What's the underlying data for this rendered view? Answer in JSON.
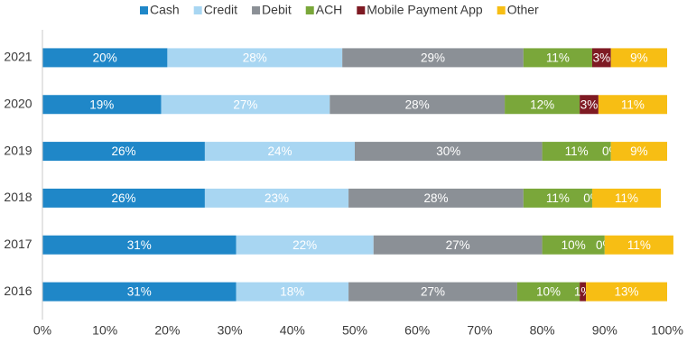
{
  "chart_data": {
    "type": "stacked-bar-horizontal",
    "categories": [
      "2021",
      "2020",
      "2019",
      "2018",
      "2017",
      "2016"
    ],
    "series": [
      {
        "name": "Cash",
        "color": "#1f87c8",
        "values": [
          20,
          19,
          26,
          26,
          31,
          31
        ],
        "value_labels": [
          "20%",
          "19%",
          "26%",
          "26%",
          "31%",
          "31%"
        ]
      },
      {
        "name": "Credit",
        "color": "#a8d6f2",
        "values": [
          28,
          27,
          24,
          23,
          22,
          18
        ],
        "value_labels": [
          "28%",
          "27%",
          "24%",
          "23%",
          "22%",
          "18%"
        ]
      },
      {
        "name": "Debit",
        "color": "#8b9096",
        "values": [
          29,
          28,
          30,
          28,
          27,
          27
        ],
        "value_labels": [
          "29%",
          "28%",
          "30%",
          "28%",
          "27%",
          "27%"
        ]
      },
      {
        "name": "ACH",
        "color": "#7aa73a",
        "values": [
          11,
          12,
          11,
          11,
          10,
          10
        ],
        "value_labels": [
          "11%",
          "12%",
          "11%",
          "11%",
          "10%",
          "10%"
        ]
      },
      {
        "name": "Mobile Payment App",
        "color": "#7e1a23",
        "values": [
          3,
          3,
          0,
          0,
          0,
          1
        ],
        "value_labels": [
          "3%",
          "3%",
          "0%",
          "0%",
          "0%",
          "1%"
        ]
      },
      {
        "name": "Other",
        "color": "#f7be14",
        "values": [
          9,
          11,
          9,
          11,
          11,
          13
        ],
        "value_labels": [
          "9%",
          "11%",
          "9%",
          "11%",
          "11%",
          "13%"
        ]
      }
    ],
    "xlim": [
      0,
      100
    ],
    "xticks": [
      {
        "value": 0,
        "label": "0%"
      },
      {
        "value": 10,
        "label": "10%"
      },
      {
        "value": 20,
        "label": "20%"
      },
      {
        "value": 30,
        "label": "30%"
      },
      {
        "value": 40,
        "label": "40%"
      },
      {
        "value": 50,
        "label": "50%"
      },
      {
        "value": 60,
        "label": "60%"
      },
      {
        "value": 70,
        "label": "70%"
      },
      {
        "value": 80,
        "label": "80%"
      },
      {
        "value": 90,
        "label": "90%"
      },
      {
        "value": 100,
        "label": "100%"
      }
    ],
    "legend": "top"
  }
}
